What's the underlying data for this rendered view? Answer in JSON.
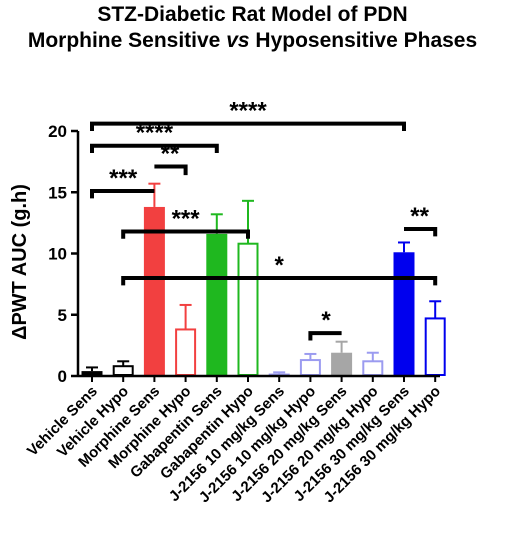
{
  "chart_data": {
    "type": "bar",
    "title_line1": "STZ-Diabetic Rat Model of PDN",
    "title_line2_a": "Morphine Sensitive ",
    "title_line2_b": "vs",
    "title_line2_c": " Hyposensitive Phases",
    "ylabel": "ΔPWT AUC (g.h)",
    "xlabel": "",
    "ylim": [
      0,
      20
    ],
    "yticks": [
      0,
      5,
      10,
      15,
      20
    ],
    "grid": false,
    "categories": [
      "Vehicle Sens",
      "Vehicle Hypo",
      "Morphine Sens",
      "Morphine Hypo",
      "Gabapentin Sens",
      "Gabapentin Hypo",
      "J-2156 10 mg/kg Sens",
      "J-2156 10 mg/kg Hypo",
      "J-2156 20 mg/kg Sens",
      "J-2156 20 mg/kg Hypo",
      "J-2156 30 mg/kg Sens",
      "J-2156 30 mg/kg Hypo"
    ],
    "bars": [
      {
        "value": 0.4,
        "error": 0.3,
        "color": "#000000",
        "filled": true
      },
      {
        "value": 0.8,
        "error": 0.4,
        "color": "#000000",
        "filled": false
      },
      {
        "value": 13.8,
        "error": 1.9,
        "color": "#f24040",
        "filled": true
      },
      {
        "value": 3.8,
        "error": 2.0,
        "color": "#f24040",
        "filled": false
      },
      {
        "value": 11.6,
        "error": 1.6,
        "color": "#1fb81f",
        "filled": true
      },
      {
        "value": 10.8,
        "error": 3.5,
        "color": "#1fb81f",
        "filled": false
      },
      {
        "value": 0.2,
        "error": 0.1,
        "color": "#9b9bf0",
        "filled": true
      },
      {
        "value": 1.3,
        "error": 0.5,
        "color": "#9b9bf0",
        "filled": false
      },
      {
        "value": 1.9,
        "error": 0.9,
        "color": "#a6a6a6",
        "filled": true
      },
      {
        "value": 1.2,
        "error": 0.7,
        "color": "#9b9bf0",
        "filled": false
      },
      {
        "value": 10.1,
        "error": 0.8,
        "color": "#0000ee",
        "filled": true
      },
      {
        "value": 4.7,
        "error": 1.4,
        "color": "#0000ee",
        "filled": false
      }
    ],
    "annotations": [
      {
        "label": "****",
        "from": 0,
        "to": 10,
        "y": 20.6,
        "drop_left": 0.6,
        "drop_right": 0.6
      },
      {
        "label": "****",
        "from": 0,
        "to": 4,
        "y": 18.8,
        "drop_left": 0.6,
        "drop_right": 0.6
      },
      {
        "label": "***",
        "from": 0,
        "to": 2,
        "y": 15.1,
        "drop_left": 0.6,
        "drop_right": 0
      },
      {
        "label": "**",
        "from": 2,
        "to": 3,
        "y": 17.1,
        "drop_left": 0,
        "drop_right": 0.7
      },
      {
        "label": "***",
        "from": 1,
        "to": 5,
        "y": 11.8,
        "drop_left": 0.6,
        "drop_right": 0.6
      },
      {
        "label": "*",
        "from": 1,
        "to": 11,
        "y": 8.0,
        "drop_left": 0.6,
        "drop_right": 0.6
      },
      {
        "label": "*",
        "from": 7,
        "to": 8,
        "y": 3.5,
        "drop_left": 0.6,
        "drop_right": 0
      },
      {
        "label": "**",
        "from": 10,
        "to": 11,
        "y": 12.0,
        "drop_left": 0,
        "drop_right": 0.6
      }
    ]
  }
}
